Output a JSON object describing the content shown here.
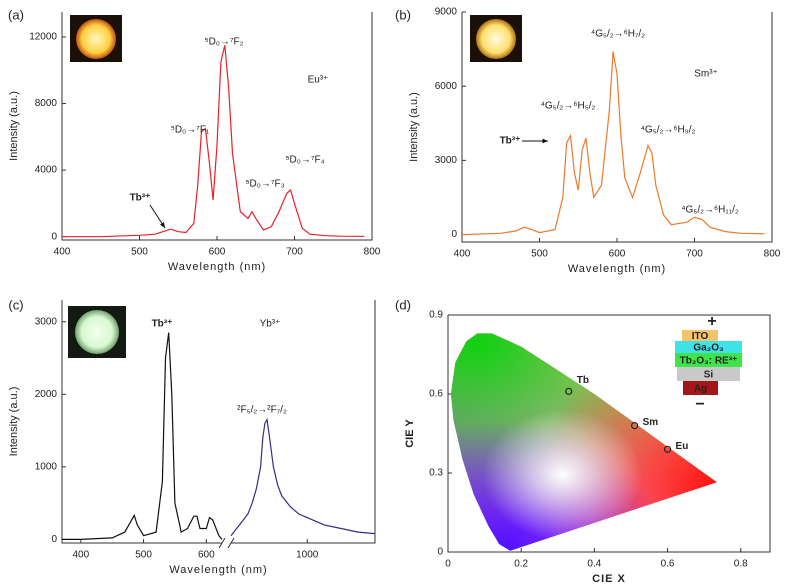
{
  "chart_data": [
    {
      "type": "line",
      "label": "(a)",
      "xlabel": "Wavelength (nm)",
      "ylabel": "Intensity (a.u.)",
      "xlim": [
        400,
        800
      ],
      "xticks": [
        400,
        500,
        600,
        700,
        800
      ],
      "ylim": [
        -200,
        13500
      ],
      "yticks": [
        0,
        4000,
        8000,
        12000
      ],
      "series": [
        {
          "color": "#e8202a",
          "x": [
            400,
            450,
            480,
            500,
            520,
            530,
            540,
            550,
            560,
            570,
            575,
            580,
            585,
            590,
            595,
            600,
            605,
            610,
            615,
            620,
            630,
            640,
            645,
            650,
            660,
            670,
            680,
            690,
            695,
            700,
            710,
            720,
            740,
            760,
            790
          ],
          "values": [
            0,
            0,
            50,
            80,
            150,
            300,
            450,
            300,
            250,
            800,
            3000,
            6300,
            6500,
            4500,
            2200,
            5500,
            10500,
            11500,
            9000,
            5000,
            1500,
            1100,
            1500,
            1100,
            400,
            600,
            1500,
            2600,
            2800,
            2000,
            500,
            150,
            60,
            30,
            20
          ]
        }
      ],
      "annotations": [
        "Eu³⁺",
        "⁵D₀→⁷F₂",
        "⁵D₀→⁷F₁",
        "⁵D₀→⁷F₃",
        "⁵D₀→⁷F₄",
        "Tb³⁺"
      ],
      "annotation_colors": [
        "#e8202a",
        "#e8202a",
        "#e8202a",
        "#e8202a",
        "#e8202a",
        "#111"
      ]
    },
    {
      "type": "line",
      "label": "(b)",
      "xlabel": "Wavelength (nm)",
      "ylabel": "Intensity (a.u.)",
      "xlim": [
        400,
        800
      ],
      "xticks": [
        400,
        500,
        600,
        700,
        800
      ],
      "ylim": [
        -300,
        9000
      ],
      "yticks": [
        0,
        3000,
        6000,
        9000
      ],
      "series": [
        {
          "color": "#ec7a2c",
          "x": [
            400,
            450,
            470,
            480,
            490,
            500,
            520,
            530,
            535,
            540,
            545,
            550,
            555,
            560,
            565,
            570,
            580,
            590,
            595,
            600,
            605,
            610,
            620,
            630,
            640,
            645,
            650,
            660,
            670,
            690,
            700,
            710,
            720,
            740,
            760,
            790
          ],
          "values": [
            0,
            50,
            150,
            300,
            200,
            80,
            200,
            1500,
            3700,
            4000,
            2500,
            1800,
            3400,
            3900,
            2500,
            1500,
            2000,
            5000,
            7400,
            6500,
            4000,
            2300,
            1500,
            2500,
            3600,
            3300,
            2000,
            800,
            400,
            500,
            700,
            600,
            300,
            120,
            50,
            30
          ]
        }
      ],
      "annotations": [
        "Sm³⁺",
        "⁴G₅/₂→⁶H₇/₂",
        "⁴G₅/₂→⁶H₅/₂",
        "⁴G₅/₂→⁶H₉/₂",
        "⁴G₅/₂→⁶H₁₁/₂",
        "Tb³⁺"
      ],
      "annotation_colors": [
        "#ec7a2c",
        "#ec7a2c",
        "#ec7a2c",
        "#ec7a2c",
        "#ec7a2c",
        "#111"
      ]
    },
    {
      "type": "line",
      "label": "(c)",
      "xlabel": "Wavelength (nm)",
      "ylabel": "Intensity (a.u.)",
      "xlim": [
        370,
        625
      ],
      "xticks": [
        400,
        500,
        600
      ],
      "xlim2": [
        820,
        1160
      ],
      "xticks2": [
        1000
      ],
      "ylim": [
        -50,
        3300
      ],
      "yticks": [
        0,
        1000,
        2000,
        3000
      ],
      "series": [
        {
          "color": "#111111",
          "x": [
            370,
            400,
            450,
            470,
            480,
            485,
            490,
            500,
            520,
            530,
            535,
            540,
            545,
            550,
            560,
            570,
            580,
            585,
            590,
            600,
            605,
            610,
            620,
            625
          ],
          "values": [
            0,
            0,
            20,
            100,
            250,
            330,
            200,
            50,
            100,
            800,
            2500,
            2850,
            2000,
            500,
            100,
            150,
            320,
            320,
            150,
            150,
            300,
            270,
            50,
            0
          ]
        },
        {
          "color": "#3a2a80",
          "axis": "x2",
          "x": [
            820,
            840,
            860,
            870,
            880,
            890,
            895,
            900,
            905,
            910,
            920,
            930,
            940,
            960,
            980,
            1000,
            1040,
            1080,
            1120,
            1160
          ],
          "values": [
            50,
            200,
            350,
            500,
            700,
            1000,
            1400,
            1600,
            1650,
            1450,
            1000,
            750,
            600,
            450,
            350,
            300,
            200,
            150,
            100,
            80
          ]
        }
      ],
      "annotations": [
        "Tb³⁺",
        "Yb³⁺",
        "²F₅/₂→²F₇/₂"
      ],
      "annotation_colors": [
        "#111",
        "#9a40c0",
        "#3a2a80"
      ]
    },
    {
      "type": "scatter",
      "label": "(d)",
      "xlabel": "CIE X",
      "ylabel": "CIE Y",
      "xlim": [
        0,
        0.88
      ],
      "xticks": [
        0,
        0.2,
        0.4,
        0.6,
        0.8
      ],
      "ylim": [
        0,
        0.9
      ],
      "yticks": [
        0,
        0.3,
        0.6,
        0.9
      ],
      "x": [
        0.33,
        0.51,
        0.6
      ],
      "values": [
        0.61,
        0.48,
        0.39
      ],
      "point_labels": [
        "Tb",
        "Sm",
        "Eu"
      ],
      "device_layers": [
        "ITO",
        "Ga₂O₃",
        "Tb₂O₃: RE³⁺",
        "Si",
        "Ag"
      ],
      "device_layer_colors": [
        "#f3c46a",
        "#3fe3e6",
        "#3fe44a",
        "#c9c9c9",
        "#a3161a"
      ],
      "device_terminals": [
        "+",
        "−"
      ]
    }
  ]
}
